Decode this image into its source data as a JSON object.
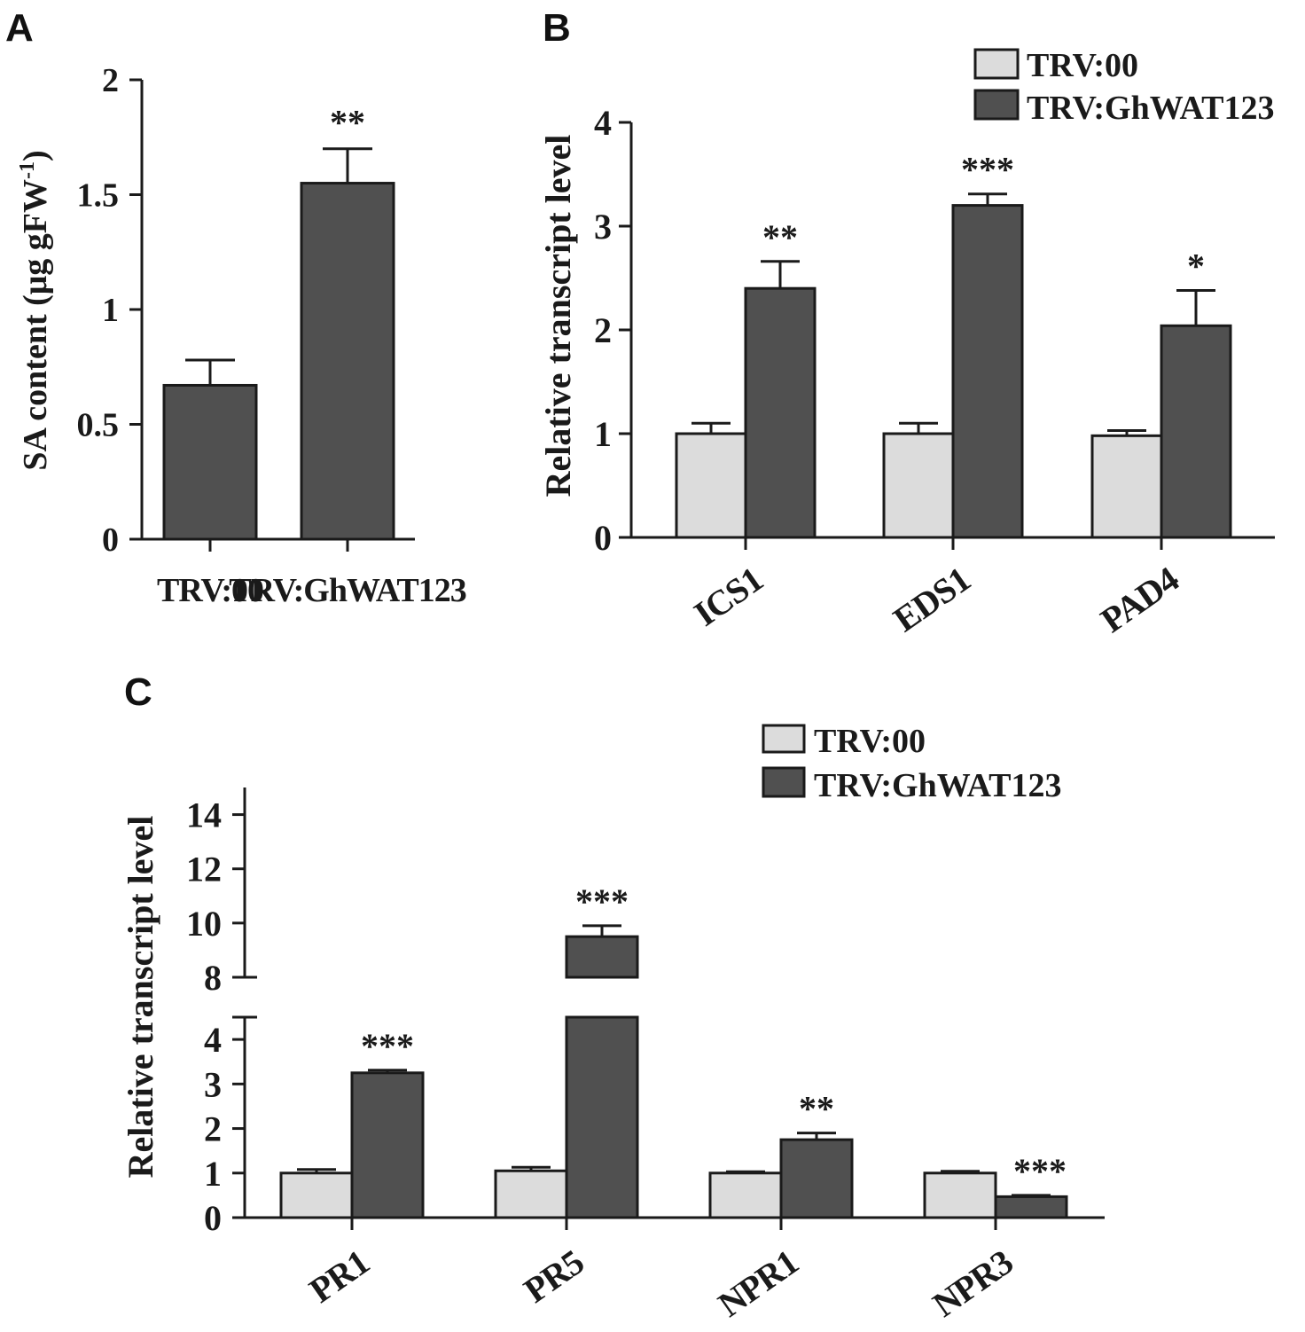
{
  "colors": {
    "control": "#dcdcdc",
    "treatment": "#505050",
    "ink": "#1a1a1a"
  },
  "chart_data": [
    {
      "panel": "A",
      "type": "bar",
      "ylabel_main": "SA content (μg gFW",
      "ylabel_sup": "-1",
      "ylabel_close": ")",
      "ylim": [
        0,
        2
      ],
      "yticks": [
        0,
        0.5,
        1,
        1.5,
        2
      ],
      "ytick_labels": [
        "0",
        "0.5",
        "1",
        "1.5",
        "2"
      ],
      "categories": [
        "TRV:00",
        "TRV:GhWAT123"
      ],
      "values": [
        0.67,
        1.55
      ],
      "errors": [
        0.11,
        0.15
      ],
      "significance": [
        "",
        "**"
      ]
    },
    {
      "panel": "B",
      "type": "bar",
      "ylabel": "Relative transcript level",
      "ylim": [
        0,
        4
      ],
      "yticks": [
        0,
        1,
        2,
        3,
        4
      ],
      "ytick_labels": [
        "0",
        "1",
        "2",
        "3",
        "4"
      ],
      "categories": [
        "ICS1",
        "EDS1",
        "PAD4"
      ],
      "series": [
        {
          "name": "TRV:00",
          "values": [
            1.0,
            1.0,
            0.98
          ],
          "errors": [
            0.1,
            0.1,
            0.05
          ]
        },
        {
          "name": "TRV:GhWAT123",
          "values": [
            2.4,
            3.2,
            2.04
          ],
          "errors": [
            0.26,
            0.11,
            0.34
          ]
        }
      ],
      "significance": [
        "**",
        "***",
        "*"
      ],
      "legend": [
        "TRV:00",
        "TRV:GhWAT123"
      ],
      "legend_position": "top-right"
    },
    {
      "panel": "C",
      "type": "bar",
      "ylabel": "Relative transcript level",
      "ylim": [
        0,
        15
      ],
      "axis_break": [
        4.5,
        8
      ],
      "yticks": [
        0,
        1,
        2,
        3,
        4,
        8,
        10,
        12,
        14
      ],
      "ytick_labels": [
        "0",
        "1",
        "2",
        "3",
        "4",
        "8",
        "10",
        "12",
        "14"
      ],
      "categories": [
        "PR1",
        "PR5",
        "NPR1",
        "NPR3"
      ],
      "series": [
        {
          "name": "TRV:00",
          "values": [
            1.0,
            1.05,
            1.0,
            1.0
          ],
          "errors": [
            0.08,
            0.08,
            0.03,
            0.04
          ]
        },
        {
          "name": "TRV:GhWAT123",
          "values": [
            3.25,
            9.5,
            1.75,
            0.47
          ],
          "errors": [
            0.06,
            0.4,
            0.15,
            0.03
          ]
        }
      ],
      "significance": [
        "***",
        "***",
        "**",
        "***"
      ],
      "legend": [
        "TRV:00",
        "TRV:GhWAT123"
      ],
      "legend_position": "top-right"
    }
  ],
  "panel_labels": [
    "A",
    "B",
    "C"
  ]
}
